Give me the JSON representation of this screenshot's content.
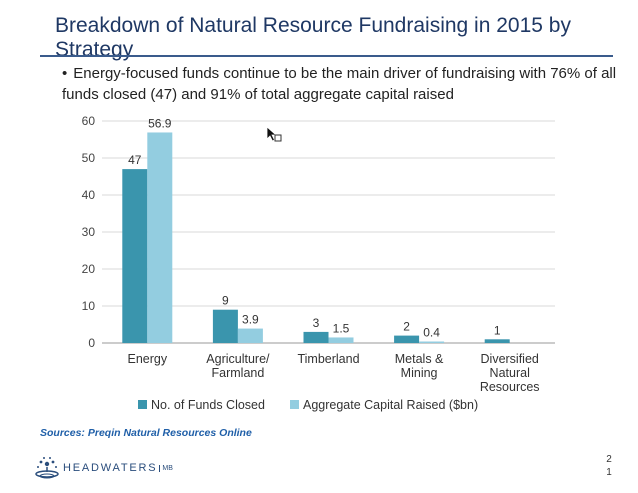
{
  "slide": {
    "title": "Breakdown of Natural Resource Fundraising in 2015 by Strategy",
    "bullet": "Energy-focused funds continue to be the main driver of fundraising with 76% of all funds closed (47) and 91% of total aggregate capital raised",
    "sources": "Sources:  Preqin Natural Resources Online",
    "logo_text": "HEADWATERS",
    "logo_sub": "MB",
    "page_number_line1": "2",
    "page_number_line2": "1"
  },
  "chart_data": {
    "type": "bar",
    "categories": [
      "Energy",
      "Agriculture/\nFarmland",
      "Timberland",
      "Metals &\nMining",
      "Diversified\nNatural\nResources"
    ],
    "series": [
      {
        "name": "No. of Funds Closed",
        "values": [
          47,
          9,
          3,
          2,
          1
        ],
        "labels": [
          "47",
          "9",
          "3",
          "2",
          "1"
        ],
        "color": "#3a95ad"
      },
      {
        "name": "Aggregate Capital Raised ($bn)",
        "values": [
          56.9,
          3.9,
          1.5,
          0.4,
          0
        ],
        "labels": [
          "56.9",
          "3.9",
          "1.5",
          "0.4",
          ""
        ],
        "color": "#93cde0"
      }
    ],
    "ylim": [
      0,
      60
    ],
    "yticks": [
      0,
      10,
      20,
      30,
      40,
      50,
      60
    ],
    "grid": true,
    "legend": "bottom",
    "title": "",
    "xlabel": "",
    "ylabel": ""
  }
}
